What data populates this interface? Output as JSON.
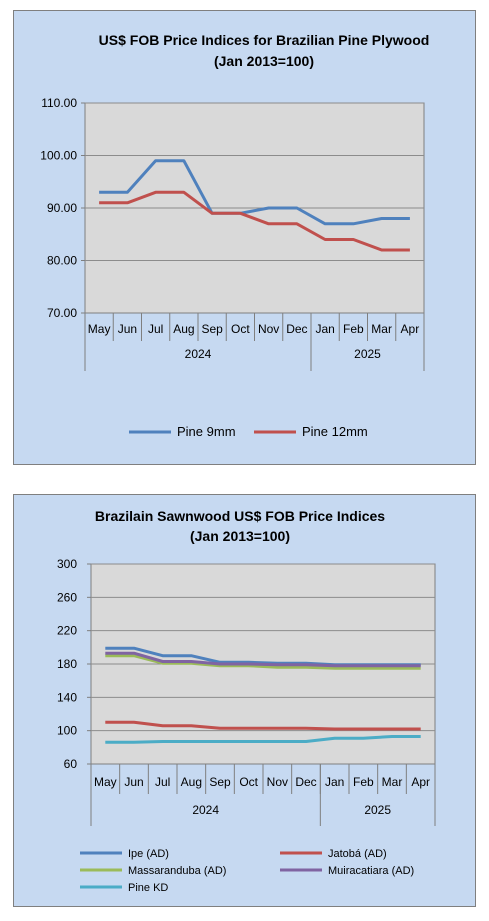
{
  "chart_data": [
    {
      "type": "line",
      "title": [
        "US$ FOB Price Indices for Brazilian  Pine Plywood",
        "(Jan 2013=100)"
      ],
      "categories": [
        "May",
        "Jun",
        "Jul",
        "Aug",
        "Sep",
        "Oct",
        "Nov",
        "Dec",
        "Jan",
        "Feb",
        "Mar",
        "Apr"
      ],
      "year_groups": [
        {
          "label": "2024",
          "count": 8
        },
        {
          "label": "2025",
          "count": 4
        }
      ],
      "ylim": [
        70,
        110
      ],
      "yticks": [
        "70.00",
        "80.00",
        "90.00",
        "100.00",
        "110.00"
      ],
      "ytick_values": [
        70,
        80,
        90,
        100,
        110
      ],
      "grid": true,
      "legend_position": "bottom",
      "series": [
        {
          "name": "Pine 9mm",
          "color": "#4f81bd",
          "values": [
            93,
            93,
            99,
            99,
            89,
            89,
            90,
            90,
            87,
            87,
            88,
            88
          ]
        },
        {
          "name": "Pine 12mm",
          "color": "#c0504d",
          "values": [
            91,
            91,
            93,
            93,
            89,
            89,
            87,
            87,
            84,
            84,
            82,
            82
          ]
        }
      ]
    },
    {
      "type": "line",
      "title": [
        "Brazilain Sawnwood US$ FOB Price Indices",
        "(Jan 2013=100)"
      ],
      "categories": [
        "May",
        "Jun",
        "Jul",
        "Aug",
        "Sep",
        "Oct",
        "Nov",
        "Dec",
        "Jan",
        "Feb",
        "Mar",
        "Apr"
      ],
      "year_groups": [
        {
          "label": "2024",
          "count": 8
        },
        {
          "label": "2025",
          "count": 4
        }
      ],
      "ylim": [
        60,
        300
      ],
      "yticks": [
        "60",
        "100",
        "140",
        "180",
        "220",
        "260",
        "300"
      ],
      "ytick_values": [
        60,
        100,
        140,
        180,
        220,
        260,
        300
      ],
      "grid": true,
      "legend_position": "bottom",
      "series": [
        {
          "name": "Ipe (AD)",
          "color": "#4f81bd",
          "values": [
            199,
            199,
            190,
            190,
            182,
            182,
            181,
            181,
            179,
            179,
            179,
            179
          ]
        },
        {
          "name": "Jatobá (AD)",
          "color": "#c0504d",
          "values": [
            110,
            110,
            106,
            106,
            103,
            103,
            103,
            103,
            102,
            102,
            102,
            102
          ]
        },
        {
          "name": "Massaranduba (AD)",
          "color": "#9bbb59",
          "values": [
            190,
            190,
            181,
            181,
            178,
            178,
            176,
            176,
            175,
            175,
            175,
            175
          ]
        },
        {
          "name": "Muiracatiara (AD)",
          "color": "#8064a2",
          "values": [
            193,
            193,
            183,
            183,
            180,
            180,
            179,
            179,
            178,
            178,
            178,
            178
          ]
        },
        {
          "name": "Pine KD",
          "color": "#4bacc6",
          "values": [
            86,
            86,
            87,
            87,
            87,
            87,
            87,
            87,
            91,
            91,
            93,
            93
          ]
        }
      ]
    }
  ]
}
